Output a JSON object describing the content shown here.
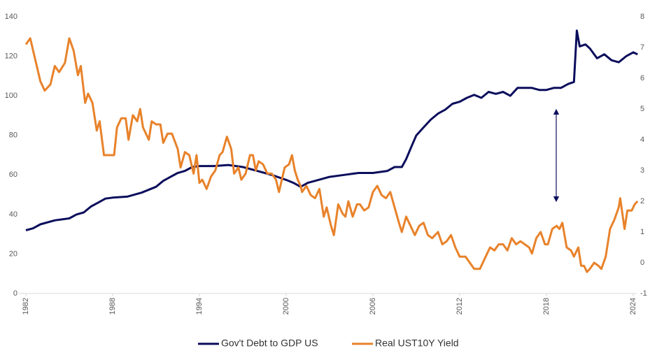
{
  "chart_data": {
    "type": "line",
    "xlim": [
      1982,
      2024
    ],
    "xticks": [
      1982,
      1988,
      1994,
      2000,
      2006,
      2012,
      2018,
      2024
    ],
    "ylim": [
      0,
      140
    ],
    "yticks": [
      0,
      20,
      40,
      60,
      80,
      100,
      120,
      140
    ],
    "y2lim": [
      -1,
      8
    ],
    "y2ticks": [
      -1,
      0,
      1,
      2,
      3,
      4,
      5,
      6,
      7,
      8
    ],
    "series": [
      {
        "name": "Gov't Debt to GDP US",
        "color": "#0b0d5c",
        "x": [
          1982,
          1982.5,
          1983,
          1984,
          1985,
          1985.5,
          1986,
          1986.5,
          1987,
          1987.5,
          1988,
          1989,
          1989.5,
          1990,
          1991,
          1991.5,
          1992,
          1992.5,
          1993,
          1993.5,
          1994,
          1995,
          1996,
          1997,
          1998,
          1999,
          2000,
          2000.5,
          2001,
          2001.5,
          2002,
          2003,
          2004,
          2005,
          2006,
          2007,
          2007.5,
          2008,
          2008.3,
          2008.7,
          2009,
          2009.5,
          2010,
          2010.5,
          2011,
          2011.5,
          2012,
          2012.5,
          2013,
          2013.5,
          2014,
          2014.5,
          2015,
          2015.5,
          2016,
          2016.5,
          2017,
          2017.5,
          2018,
          2018.5,
          2019,
          2019.5,
          2019.9,
          2020.1,
          2020.3,
          2020.7,
          2021,
          2021.5,
          2022,
          2022.5,
          2023,
          2023.5,
          2024,
          2024.3
        ],
        "values": [
          32,
          33,
          35,
          37,
          38,
          40,
          41,
          44,
          46,
          48,
          48.5,
          49,
          50,
          51,
          54,
          57,
          59,
          61,
          62,
          64,
          64.5,
          64.5,
          65,
          64,
          62,
          60,
          57.5,
          56,
          54,
          56,
          57,
          59,
          60,
          61,
          61,
          62,
          64,
          64,
          68,
          75,
          80,
          84,
          88,
          91,
          93,
          96,
          97,
          99,
          100.5,
          99,
          102,
          101,
          102,
          100,
          104,
          104,
          104,
          103,
          103,
          104,
          104,
          106,
          107,
          133,
          125,
          126,
          124,
          119,
          121,
          118,
          117,
          120,
          122,
          121
        ]
      },
      {
        "name": "Real UST10Y Yield",
        "color": "#e8822a",
        "axis": "y2",
        "x": [
          1982,
          1982.3,
          1982.7,
          1983,
          1983.3,
          1983.7,
          1984,
          1984.3,
          1984.7,
          1985,
          1985.3,
          1985.6,
          1985.8,
          1986.1,
          1986.3,
          1986.6,
          1986.9,
          1987.1,
          1987.4,
          1987.8,
          1988.1,
          1988.3,
          1988.6,
          1988.9,
          1989.1,
          1989.4,
          1989.7,
          1989.9,
          1990.1,
          1990.5,
          1990.7,
          1991,
          1991.3,
          1991.5,
          1991.8,
          1992.1,
          1992.5,
          1992.7,
          1993,
          1993.3,
          1993.6,
          1993.8,
          1994,
          1994.2,
          1994.5,
          1994.8,
          1995.1,
          1995.4,
          1995.6,
          1995.9,
          1996.2,
          1996.4,
          1996.7,
          1996.9,
          1997.2,
          1997.5,
          1997.7,
          1997.9,
          1998.1,
          1998.4,
          1998.7,
          1999,
          1999.3,
          1999.5,
          1999.9,
          2000.2,
          2000.4,
          2000.6,
          2000.8,
          2001,
          2001.1,
          2001.4,
          2001.7,
          2002,
          2002.3,
          2002.6,
          2002.8,
          2003.1,
          2003.3,
          2003.6,
          2003.9,
          2004.1,
          2004.3,
          2004.6,
          2004.9,
          2005.1,
          2005.4,
          2005.7,
          2006,
          2006.3,
          2006.6,
          2006.9,
          2007.2,
          2007.5,
          2007.8,
          2008,
          2008.3,
          2008.6,
          2008.9,
          2009.2,
          2009.5,
          2009.8,
          2010.1,
          2010.5,
          2010.8,
          2011.1,
          2011.4,
          2011.7,
          2012,
          2012.4,
          2012.7,
          2013,
          2013.4,
          2013.8,
          2014.1,
          2014.4,
          2014.7,
          2015,
          2015.3,
          2015.6,
          2015.9,
          2016.2,
          2016.5,
          2016.8,
          2017,
          2017.3,
          2017.6,
          2017.9,
          2018.1,
          2018.4,
          2018.7,
          2018.9,
          2019.1,
          2019.4,
          2019.7,
          2019.9,
          2020.2,
          2020.4,
          2020.6,
          2020.8,
          2021,
          2021.3,
          2021.6,
          2021.8,
          2022.1,
          2022.4,
          2022.7,
          2023,
          2023.1,
          2023.4,
          2023.6,
          2023.9,
          2024.1,
          2024.3
        ],
        "values": [
          7.1,
          7.3,
          6.5,
          5.9,
          5.6,
          5.8,
          6.4,
          6.2,
          6.5,
          7.3,
          6.9,
          6.1,
          6.4,
          5.2,
          5.5,
          5.2,
          4.3,
          4.6,
          3.5,
          3.5,
          3.5,
          4.4,
          4.7,
          4.7,
          4.0,
          4.8,
          4.6,
          5.0,
          4.4,
          4.0,
          4.6,
          4.5,
          4.5,
          3.9,
          4.2,
          4.2,
          3.7,
          3.1,
          3.6,
          3.5,
          2.9,
          3.5,
          2.6,
          2.7,
          2.4,
          2.8,
          3.0,
          3.5,
          3.6,
          4.1,
          3.7,
          2.9,
          3.1,
          2.7,
          2.9,
          3.5,
          3.5,
          3.0,
          3.3,
          3.2,
          2.9,
          2.9,
          2.7,
          2.3,
          3.1,
          3.2,
          3.5,
          3.0,
          2.7,
          2.5,
          2.3,
          2.5,
          2.2,
          2.1,
          2.4,
          1.5,
          1.8,
          1.2,
          0.9,
          1.9,
          1.6,
          1.5,
          2.0,
          1.5,
          1.9,
          1.9,
          1.7,
          1.8,
          2.3,
          2.5,
          2.2,
          2.1,
          2.3,
          1.8,
          1.3,
          1.0,
          1.5,
          1.2,
          0.9,
          1.2,
          1.3,
          0.9,
          0.8,
          1.0,
          0.6,
          0.7,
          0.9,
          0.5,
          0.2,
          0.2,
          0.0,
          -0.2,
          -0.2,
          0.2,
          0.5,
          0.4,
          0.6,
          0.6,
          0.4,
          0.8,
          0.6,
          0.7,
          0.6,
          0.5,
          0.3,
          0.8,
          1.0,
          0.6,
          0.6,
          1.1,
          1.2,
          1.1,
          1.3,
          0.5,
          0.4,
          0.2,
          0.5,
          -0.1,
          -0.1,
          -0.3,
          -0.2,
          0.0,
          -0.1,
          -0.2,
          0.2,
          1.1,
          1.4,
          1.8,
          2.1,
          1.1,
          1.7,
          1.7,
          1.9,
          2.0
        ]
      }
    ]
  }
}
